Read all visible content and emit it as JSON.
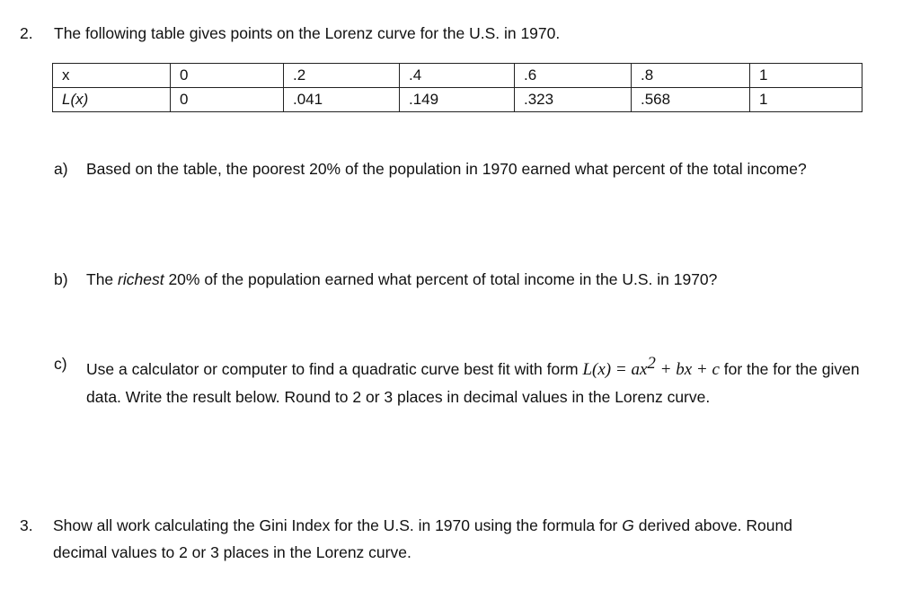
{
  "question_2": {
    "number": "2.",
    "text": "The following table gives points on the Lorenz curve for the U.S. in 1970.",
    "table": {
      "rows": [
        [
          "x",
          "0",
          ".2",
          ".4",
          ".6",
          ".8",
          "1"
        ],
        [
          "L(x)",
          "0",
          ".041",
          ".149",
          ".323",
          ".568",
          "1"
        ]
      ]
    },
    "parts": [
      {
        "label": "a)",
        "text": [
          "Based on the table, the poorest 20% of the population in 1970 earned what percent of the total income?"
        ]
      },
      {
        "label": "b)",
        "text": [
          "The ",
          "richest",
          " 20% of the population earned what percent of total income in the U.S. in 1970?"
        ]
      },
      {
        "label": "c)",
        "text": [
          "Use a calculator or computer to find a quadratic curve best fit with form ",
          "L(x) = ax",
          "2",
          " + bx + c",
          " for the for the given data.  Write the result below.  Round to 2 or 3 places in decimal values in the Lorenz curve."
        ]
      }
    ]
  },
  "question_3": {
    "number": "3.",
    "text": [
      "Show all work calculating the Gini Index for the U.S. in 1970 using the formula for ",
      "G",
      " derived above.  Round decimal values to 2 or 3 places in the Lorenz curve."
    ]
  }
}
